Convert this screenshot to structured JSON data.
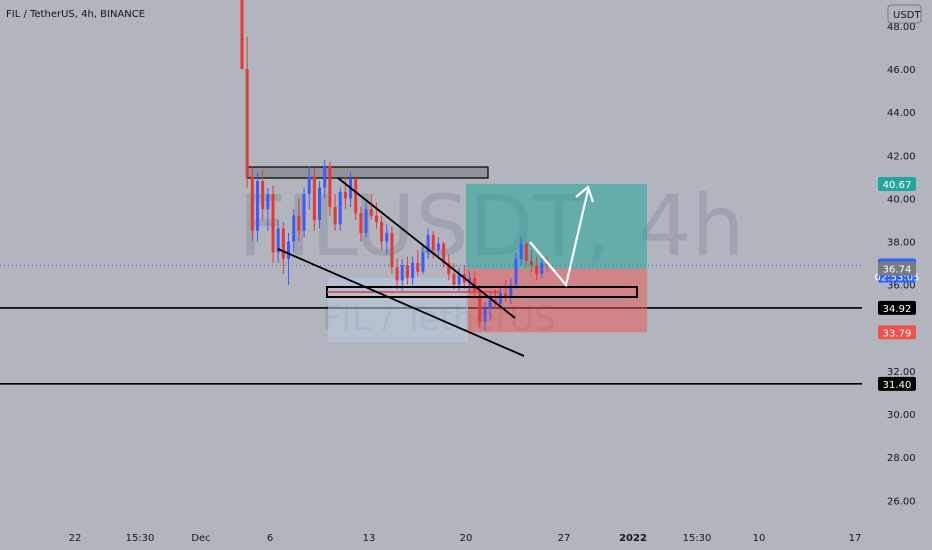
{
  "header": {
    "symbol_text": "FIL / TetherUS, 4h, BINANCE"
  },
  "currency_button": {
    "label": "USDT"
  },
  "watermark": {
    "line1": "FILUSDT, 4h",
    "line2": "FIL / TetherUS"
  },
  "chart_data": {
    "type": "candlestick",
    "ylim": [
      24.9,
      49.2
    ],
    "y_ticks": [
      26,
      28,
      30,
      32,
      34,
      36,
      38,
      40,
      42,
      44,
      46,
      48
    ],
    "y_tick_labels": [
      "26.00",
      "28.00",
      "30.00",
      "32.00",
      "",
      "36.00",
      "38.00",
      "40.00",
      "42.00",
      "44.00",
      "46.00",
      "48.00"
    ],
    "x_tick_labels": [
      "22",
      "15:30",
      "Dec",
      "6",
      "13",
      "20",
      "27",
      "2022",
      "15:30",
      "10",
      "17"
    ],
    "x_label_bold": "2022",
    "price_tags": [
      {
        "label": "40.67",
        "value": 40.67,
        "color": "#26a69a"
      },
      {
        "label": "36.89",
        "value": 36.89,
        "color": "#2962ff",
        "sub": "02:53:05"
      },
      {
        "label": "36.74",
        "value": 36.74,
        "color": "#787b86"
      },
      {
        "label": "34.92",
        "value": 34.92,
        "color": "#000000"
      },
      {
        "label": "33.79",
        "value": 33.79,
        "color": "#ef5350"
      },
      {
        "label": "31.40",
        "value": 31.4,
        "color": "#000000"
      }
    ],
    "horizontal_lines": [
      34.92,
      31.4
    ],
    "last_price": 36.89,
    "candles": [
      [
        49.2,
        49.2,
        46.0,
        46.0,
        "dn"
      ],
      [
        46.0,
        47.5,
        40.5,
        41.0,
        "dn"
      ],
      [
        41.0,
        41.5,
        38.0,
        38.5,
        "dn"
      ],
      [
        38.5,
        41.2,
        38.0,
        40.8,
        "up"
      ],
      [
        40.8,
        41.3,
        39.0,
        39.5,
        "dn"
      ],
      [
        39.5,
        40.5,
        38.5,
        40.2,
        "up"
      ],
      [
        40.2,
        40.6,
        37.0,
        37.5,
        "dn"
      ],
      [
        37.5,
        39.0,
        37.0,
        38.6,
        "up"
      ],
      [
        38.6,
        38.9,
        36.5,
        37.2,
        "dn"
      ],
      [
        37.2,
        38.4,
        36.0,
        38.0,
        "up"
      ],
      [
        38.0,
        39.5,
        37.5,
        39.2,
        "up"
      ],
      [
        39.2,
        40.0,
        38.0,
        38.5,
        "dn"
      ],
      [
        38.5,
        40.5,
        38.2,
        40.2,
        "up"
      ],
      [
        40.2,
        41.5,
        39.5,
        41.0,
        "up"
      ],
      [
        41.0,
        41.4,
        38.5,
        39.0,
        "dn"
      ],
      [
        39.0,
        40.8,
        38.6,
        40.5,
        "up"
      ],
      [
        40.5,
        41.8,
        40.0,
        41.5,
        "up"
      ],
      [
        41.5,
        41.7,
        39.2,
        39.6,
        "dn"
      ],
      [
        39.6,
        40.2,
        38.5,
        38.8,
        "dn"
      ],
      [
        38.8,
        40.5,
        38.5,
        40.3,
        "up"
      ],
      [
        40.3,
        41.0,
        39.5,
        40.0,
        "dn"
      ],
      [
        40.0,
        41.2,
        39.6,
        40.9,
        "up"
      ],
      [
        40.9,
        41.0,
        39.0,
        39.3,
        "dn"
      ],
      [
        39.3,
        39.6,
        38.0,
        38.4,
        "dn"
      ],
      [
        38.4,
        39.8,
        38.2,
        39.5,
        "up"
      ],
      [
        39.5,
        40.2,
        39.0,
        39.2,
        "dn"
      ],
      [
        39.2,
        39.8,
        38.6,
        38.9,
        "dn"
      ],
      [
        38.9,
        39.2,
        37.6,
        38.0,
        "dn"
      ],
      [
        38.0,
        38.8,
        37.4,
        38.4,
        "up"
      ],
      [
        38.4,
        38.7,
        36.5,
        36.8,
        "dn"
      ],
      [
        36.8,
        37.2,
        35.8,
        36.2,
        "dn"
      ],
      [
        36.2,
        37.2,
        35.7,
        36.9,
        "up"
      ],
      [
        36.9,
        37.3,
        36.0,
        36.3,
        "dn"
      ],
      [
        36.3,
        37.3,
        36.0,
        37.0,
        "up"
      ],
      [
        37.0,
        37.6,
        36.4,
        36.6,
        "dn"
      ],
      [
        36.6,
        37.8,
        36.5,
        37.5,
        "up"
      ],
      [
        37.5,
        38.6,
        37.2,
        38.3,
        "up"
      ],
      [
        38.3,
        38.5,
        37.2,
        37.6,
        "dn"
      ],
      [
        37.6,
        38.2,
        37.2,
        37.9,
        "up"
      ],
      [
        37.9,
        38.0,
        36.8,
        37.0,
        "dn"
      ],
      [
        37.0,
        37.4,
        36.2,
        36.5,
        "dn"
      ],
      [
        36.5,
        37.0,
        35.8,
        36.0,
        "dn"
      ],
      [
        36.0,
        36.8,
        35.7,
        36.5,
        "up"
      ],
      [
        36.5,
        36.9,
        35.8,
        36.1,
        "dn"
      ],
      [
        36.1,
        36.6,
        35.6,
        36.3,
        "up"
      ],
      [
        36.3,
        36.6,
        35.5,
        35.7,
        "dn"
      ],
      [
        35.7,
        36.0,
        34.0,
        34.3,
        "dn"
      ],
      [
        34.3,
        35.2,
        33.9,
        34.9,
        "up"
      ],
      [
        34.9,
        35.6,
        34.4,
        35.3,
        "up"
      ],
      [
        35.3,
        35.8,
        34.9,
        35.1,
        "dn"
      ],
      [
        35.1,
        35.9,
        34.8,
        35.6,
        "up"
      ],
      [
        35.6,
        36.2,
        35.2,
        35.4,
        "dn"
      ],
      [
        35.4,
        36.3,
        35.1,
        36.0,
        "up"
      ],
      [
        36.0,
        37.5,
        35.8,
        37.2,
        "up"
      ],
      [
        37.2,
        38.2,
        36.9,
        37.9,
        "up"
      ],
      [
        37.9,
        38.0,
        36.8,
        37.1,
        "dn"
      ],
      [
        37.1,
        37.6,
        36.6,
        36.9,
        "dn"
      ],
      [
        36.9,
        37.3,
        36.2,
        36.5,
        "dn"
      ],
      [
        36.5,
        37.2,
        36.3,
        37.0,
        "up"
      ],
      [
        37.0,
        37.3,
        36.6,
        36.89,
        "dn"
      ]
    ]
  }
}
